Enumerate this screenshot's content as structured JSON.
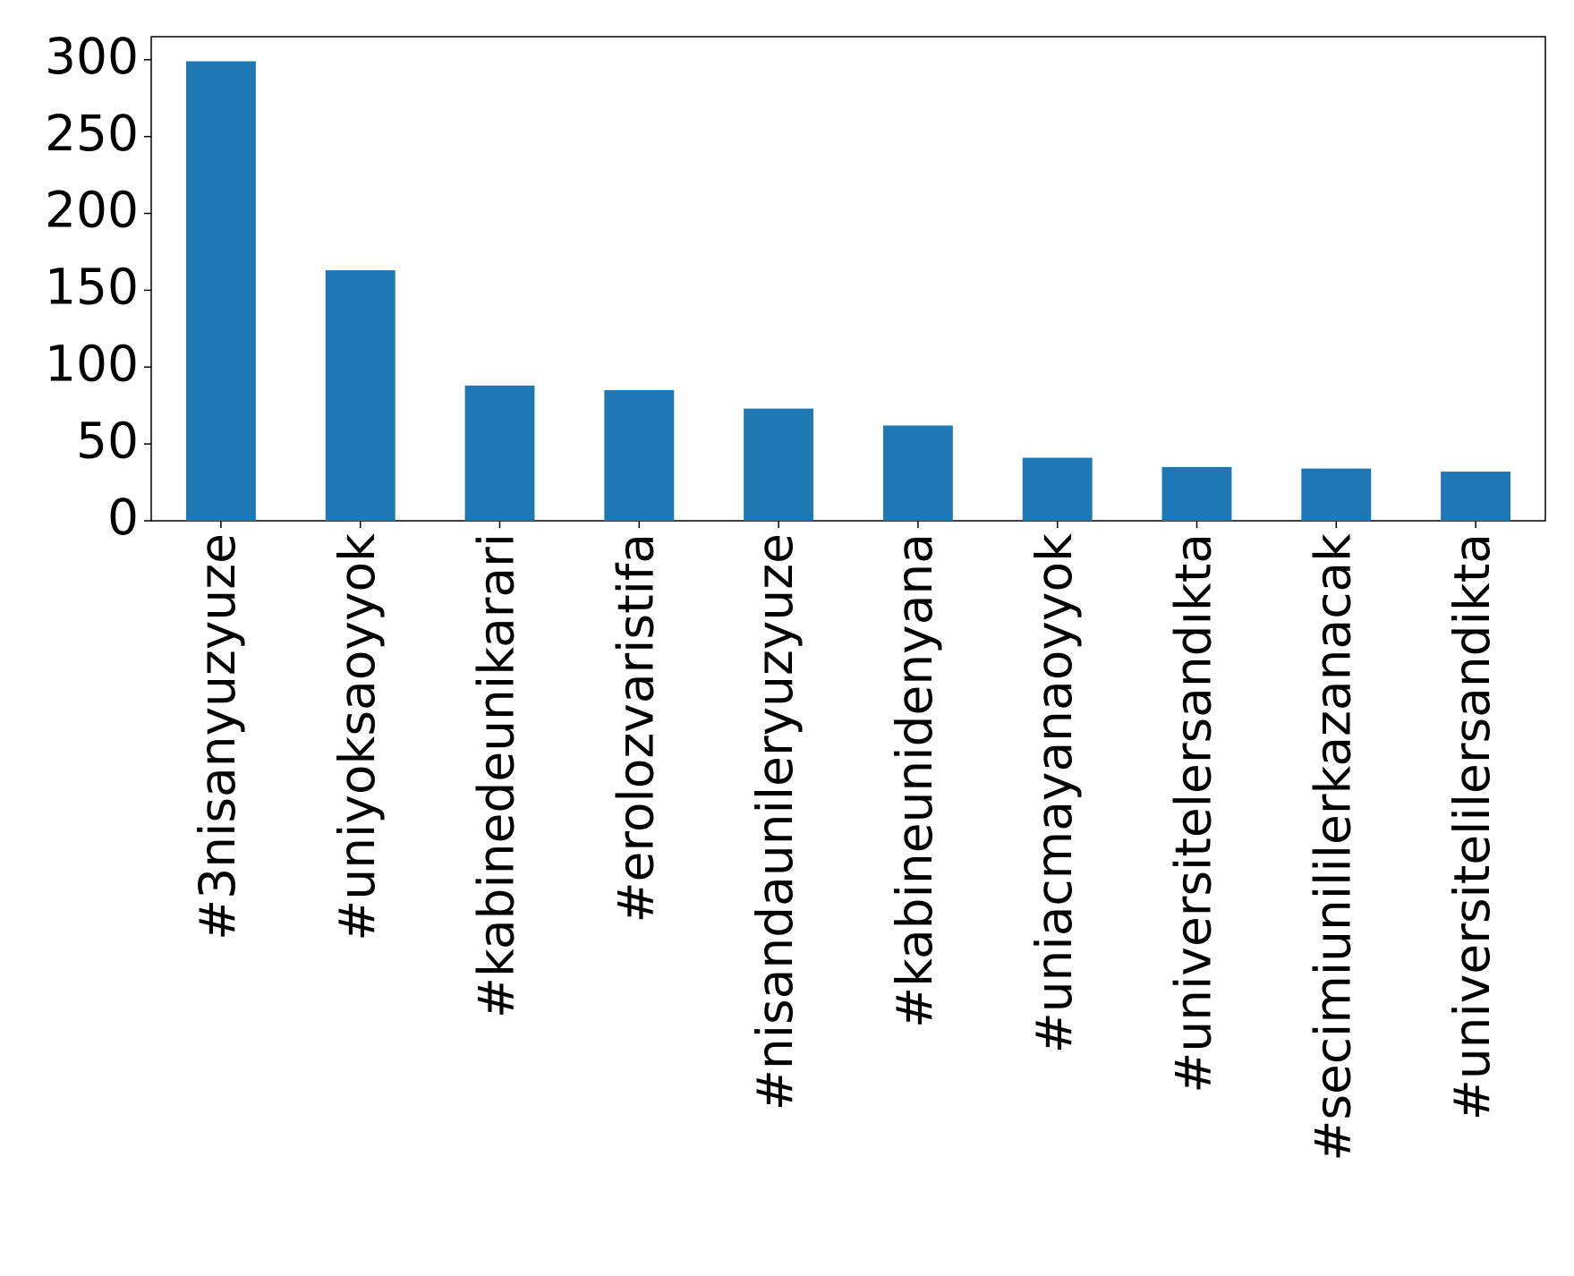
{
  "chart_data": {
    "type": "bar",
    "categories": [
      "#3nisanyuzyuze",
      "#uniyoksaoyyok",
      "#kabinedeunikarari",
      "#erolozvaristifa",
      "#nisandaunileryuzyuze",
      "#kabineunidenyana",
      "#uniacmayanaoyyok",
      "#universitelersandıkta",
      "#secimiunililerkazanacak",
      "#universitelilersandikta"
    ],
    "values": [
      299,
      163,
      88,
      85,
      73,
      62,
      41,
      35,
      34,
      32
    ],
    "color": "#1f77b4",
    "ylim": [
      0,
      315
    ],
    "yticks": [
      0,
      50,
      100,
      150,
      200,
      250,
      300
    ],
    "grid": false
  }
}
